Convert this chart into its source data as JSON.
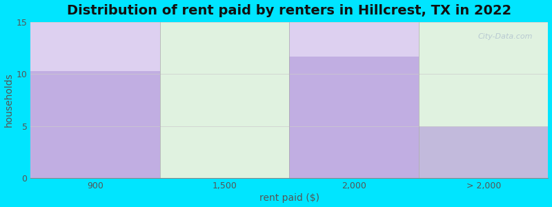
{
  "title": "Distribution of rent paid by renters in Hillcrest, TX in 2022",
  "categories": [
    "900",
    "1,500",
    "2,000",
    "> 2,000"
  ],
  "values": [
    10.3,
    0,
    11.7,
    5
  ],
  "bar_color": "#b39ddb",
  "bar_alpha": 0.65,
  "col_bg_purple": "#ddd0f0",
  "col_bg_green": "#e0f2e0",
  "plot_bg_top_color": "#e8f5e9",
  "outer_bg_color": "#00e5ff",
  "xlabel": "rent paid ($)",
  "ylabel": "households",
  "ylim": [
    0,
    15
  ],
  "yticks": [
    0,
    5,
    10,
    15
  ],
  "title_fontsize": 14,
  "axis_label_fontsize": 10,
  "tick_fontsize": 9,
  "watermark": "City-Data.com"
}
